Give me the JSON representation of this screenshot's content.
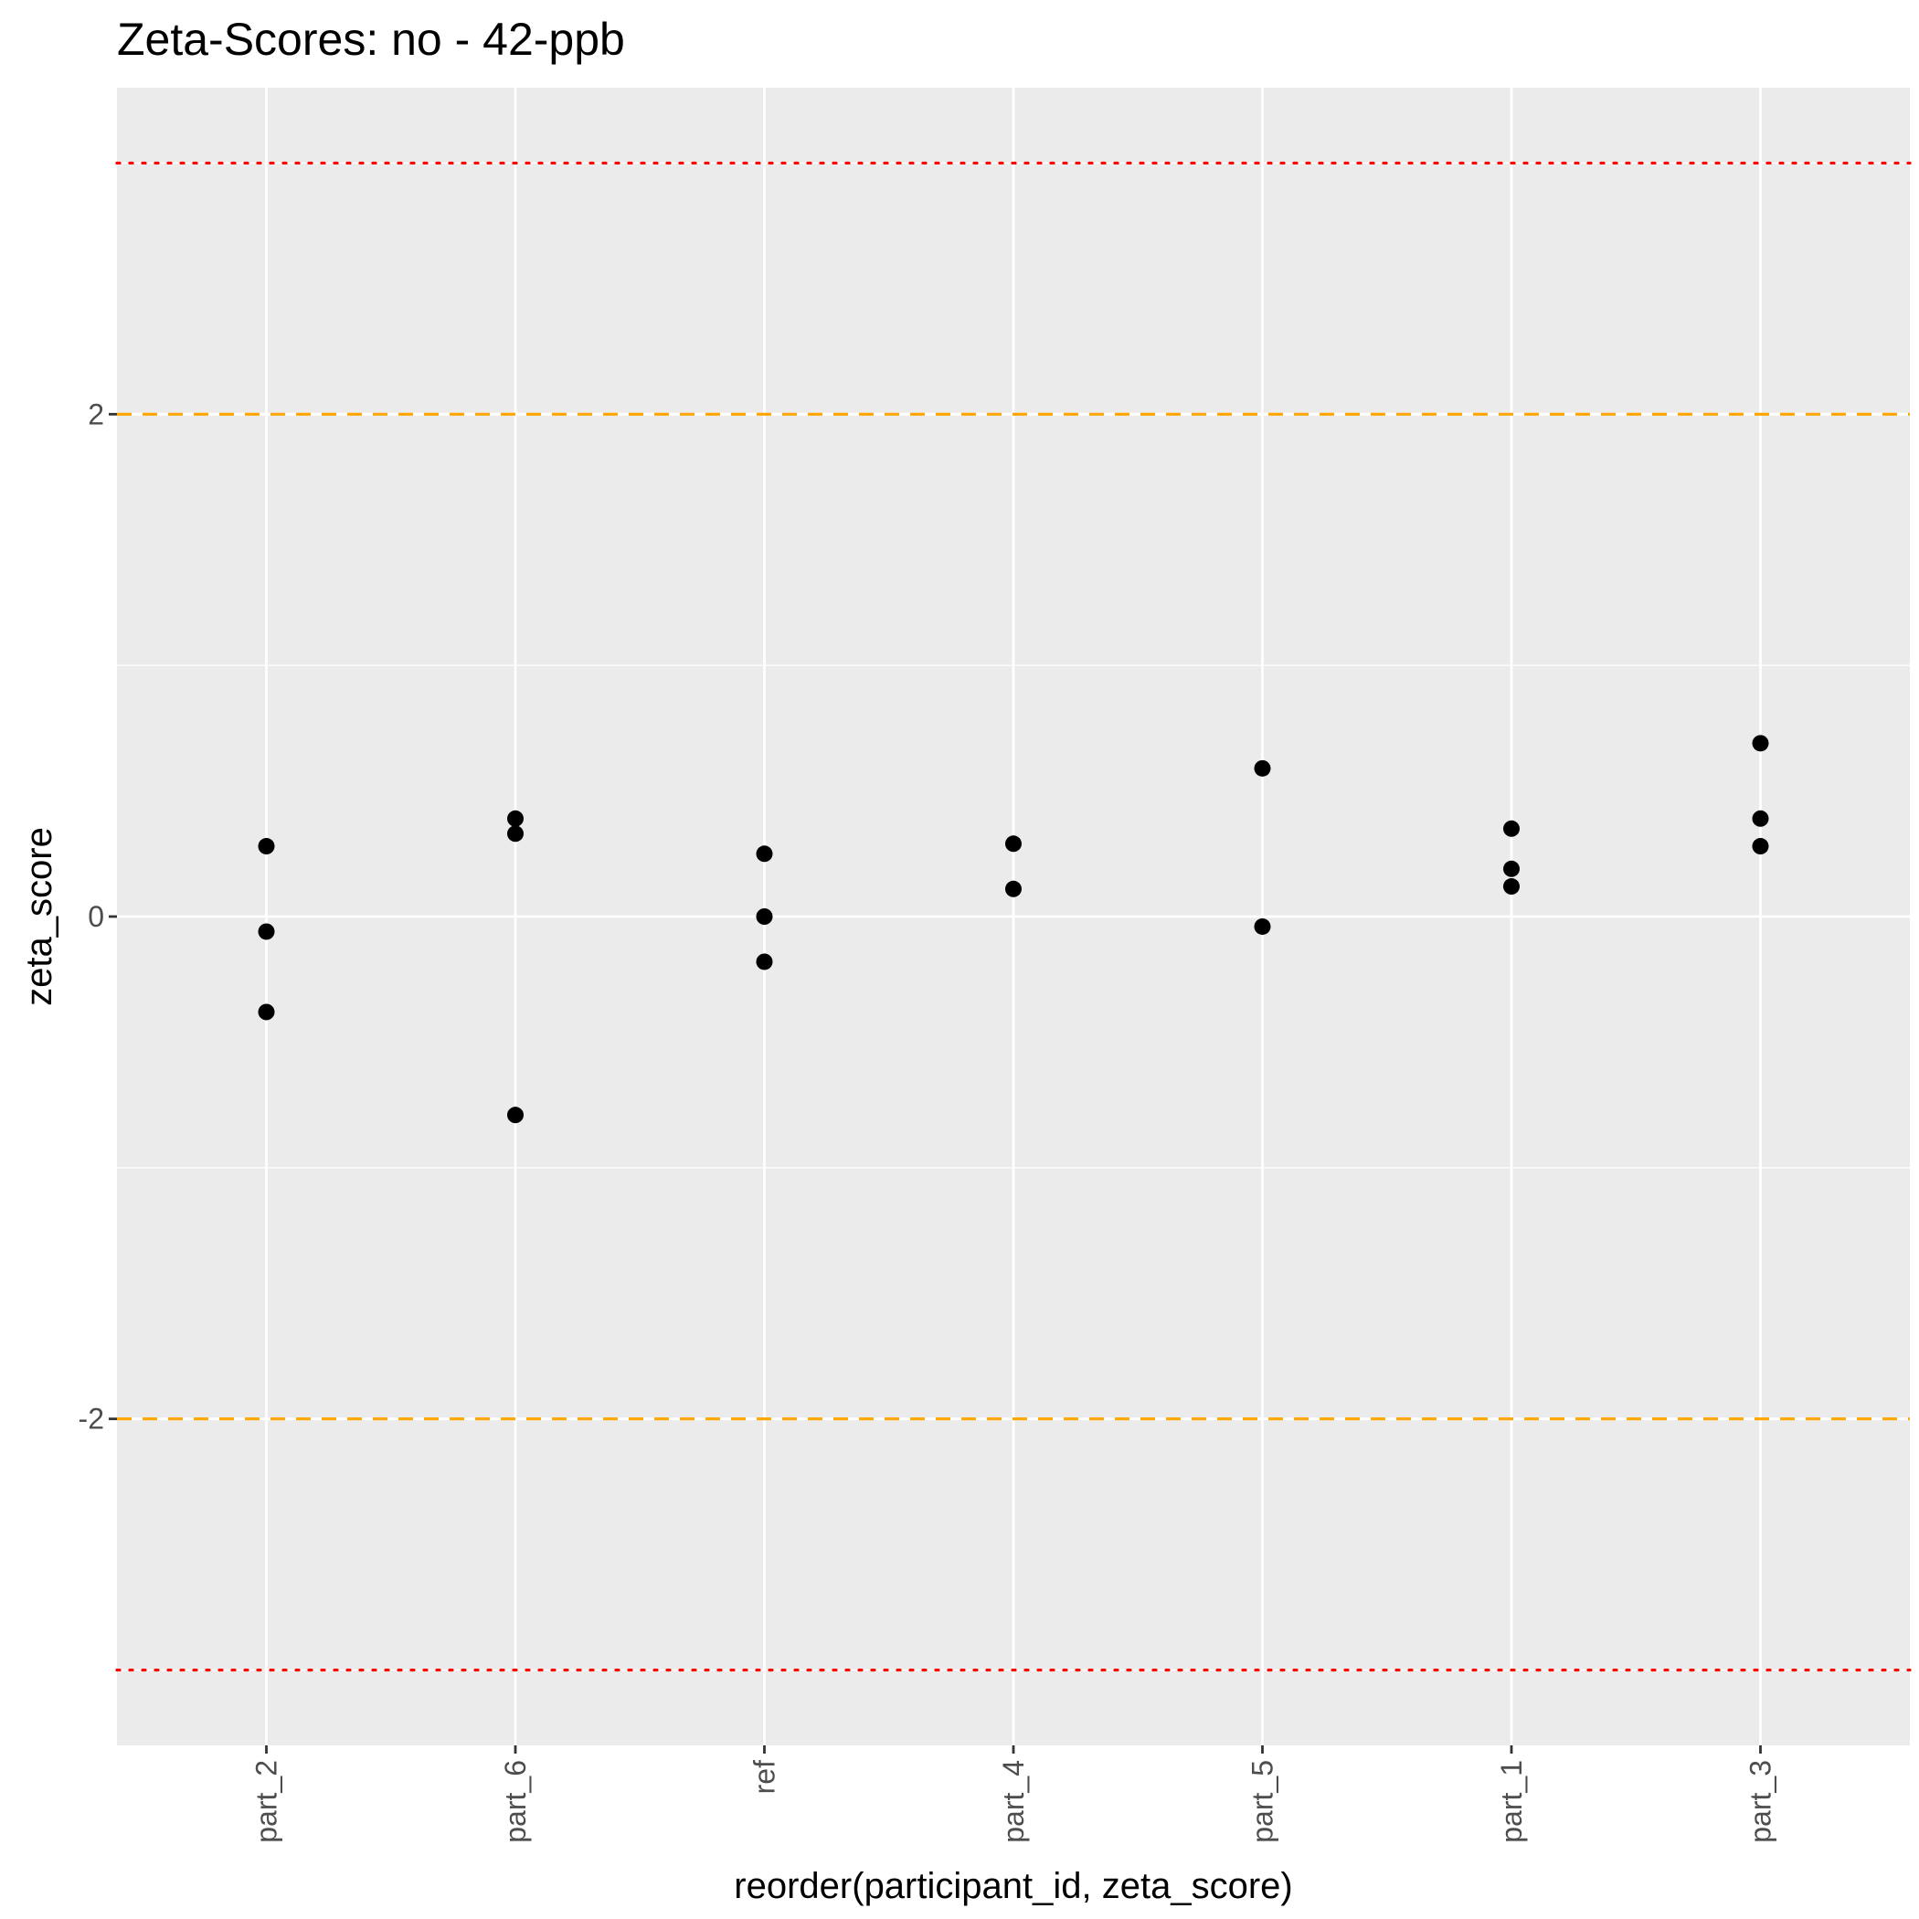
{
  "chart_data": {
    "type": "scatter",
    "title": "Zeta-Scores: no - 42-ppb",
    "xlabel": "reorder(participant_id, zeta_score)",
    "ylabel": "zeta_score",
    "categories": [
      "part_2",
      "part_6",
      "ref",
      "part_4",
      "part_5",
      "part_1",
      "part_3"
    ],
    "ylim": [
      -3.3,
      3.3
    ],
    "yticks": [
      -2,
      0,
      2
    ],
    "grid": true,
    "points": [
      {
        "x": "part_2",
        "y": 0.28
      },
      {
        "x": "part_2",
        "y": -0.06
      },
      {
        "x": "part_2",
        "y": -0.38
      },
      {
        "x": "part_6",
        "y": 0.39
      },
      {
        "x": "part_6",
        "y": 0.33
      },
      {
        "x": "part_6",
        "y": -0.79
      },
      {
        "x": "ref",
        "y": 0.25
      },
      {
        "x": "ref",
        "y": 0.0
      },
      {
        "x": "ref",
        "y": -0.18
      },
      {
        "x": "part_4",
        "y": 0.29
      },
      {
        "x": "part_4",
        "y": 0.11
      },
      {
        "x": "part_5",
        "y": 0.59
      },
      {
        "x": "part_5",
        "y": -0.04
      },
      {
        "x": "part_1",
        "y": 0.35
      },
      {
        "x": "part_1",
        "y": 0.19
      },
      {
        "x": "part_1",
        "y": 0.12
      },
      {
        "x": "part_3",
        "y": 0.69
      },
      {
        "x": "part_3",
        "y": 0.39
      },
      {
        "x": "part_3",
        "y": 0.28
      }
    ],
    "reference_lines": [
      {
        "y": 2,
        "style": "dashed",
        "color": "#FFA500"
      },
      {
        "y": -2,
        "style": "dashed",
        "color": "#FFA500"
      },
      {
        "y": 3,
        "style": "dotted",
        "color": "#FF0000"
      },
      {
        "y": -3,
        "style": "dotted",
        "color": "#FF0000"
      }
    ],
    "colors": {
      "panel": "#EBEBEB",
      "grid": "#FFFFFF",
      "point": "#000000",
      "tick_text": "#4D4D4D",
      "tick_mark": "#333333"
    }
  }
}
